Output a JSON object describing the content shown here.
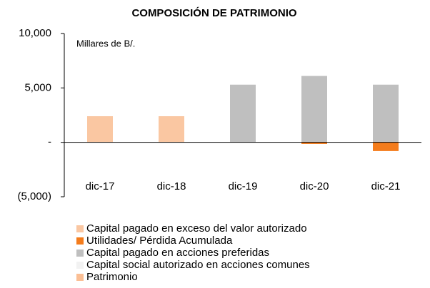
{
  "chart_data": {
    "type": "bar",
    "stacked": true,
    "title": "COMPOSICIÓN DE PATRIMONIO",
    "annotation": "Millares de B/.",
    "categories": [
      "dic-17",
      "dic-18",
      "dic-19",
      "dic-20",
      "dic-21"
    ],
    "series": [
      {
        "name": "Capital pagado en exceso del valor autorizado",
        "color": "#fac7a2",
        "values": [
          2400,
          2400,
          0,
          0,
          0
        ]
      },
      {
        "name": "Utilidades/ Pérdida Acumulada",
        "color": "#f47c1c",
        "values": [
          0,
          0,
          0,
          -150,
          -800
        ]
      },
      {
        "name": "Capital pagado en acciones preferidas",
        "color": "#bfbfbf",
        "values": [
          0,
          0,
          5300,
          6100,
          5300
        ]
      },
      {
        "name": "Capital social autorizado en acciones comunes",
        "color": "#f2f2f2",
        "values": [
          0,
          0,
          0,
          0,
          0
        ]
      },
      {
        "name": "Patrimonio",
        "color": "#fbbf95",
        "values": [
          null,
          null,
          null,
          null,
          null
        ]
      }
    ],
    "ylim": [
      -5000,
      10000
    ],
    "yticks": [
      {
        "value": 10000,
        "label": "10,000"
      },
      {
        "value": 5000,
        "label": "5,000"
      },
      {
        "value": 0,
        "label": "-"
      },
      {
        "value": -5000,
        "label": "(5,000)"
      }
    ]
  }
}
